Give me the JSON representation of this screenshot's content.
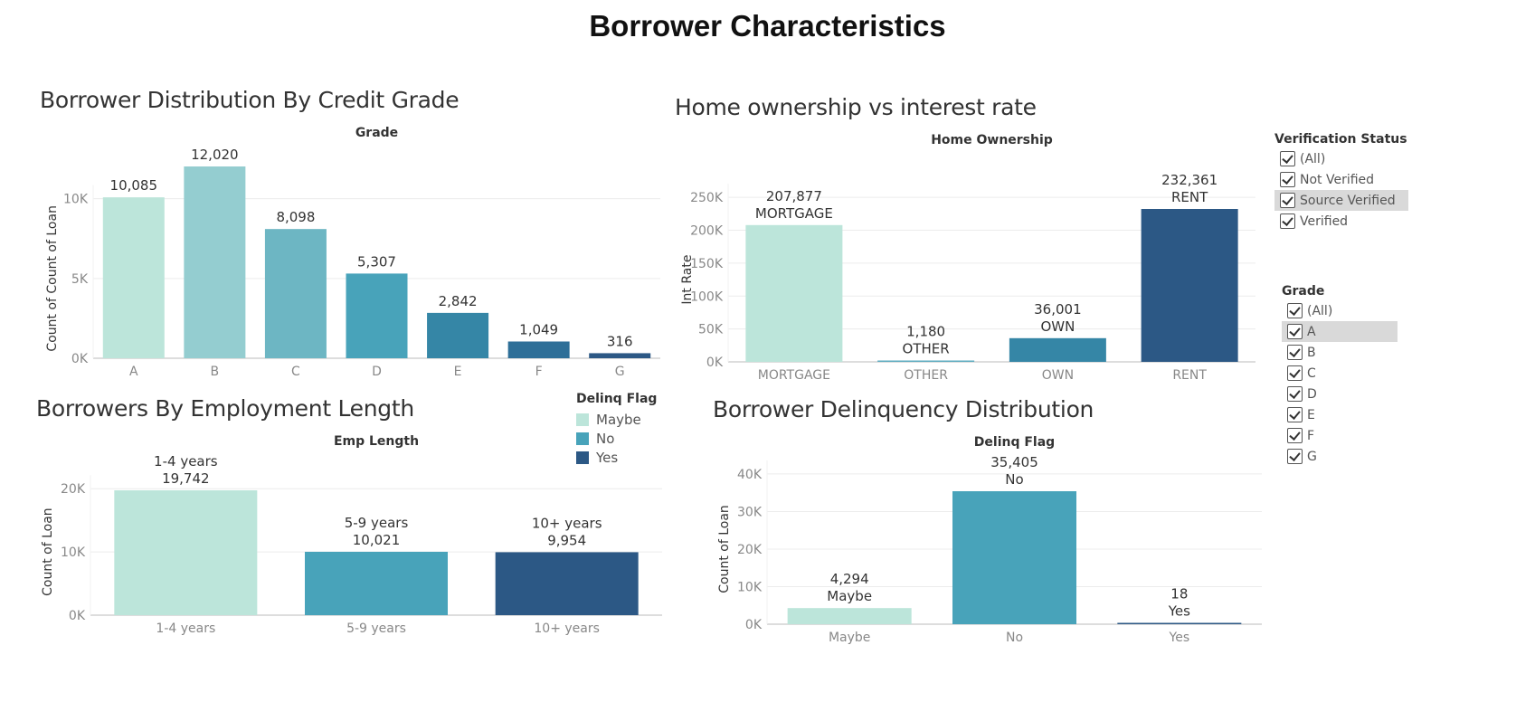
{
  "dashboard": {
    "title": "Borrower Characteristics"
  },
  "colors": {
    "grade": [
      "#bce5da",
      "#94cdd0",
      "#6db6c3",
      "#48a3ba",
      "#3586a6",
      "#2e6f98",
      "#2c5885"
    ],
    "home": [
      "#bce5da",
      "#5fadc1",
      "#3586a6",
      "#2c5885"
    ],
    "emp": [
      "#bce5da",
      "#48a3ba",
      "#2c5885"
    ],
    "delinq": [
      "#bce5da",
      "#48a3ba",
      "#2c5885"
    ]
  },
  "chart_data": [
    {
      "id": "grade",
      "type": "bar",
      "title": "Borrower Distribution By Credit Grade",
      "header": "Grade",
      "ylabel": "Count of Count of Loan",
      "categories": [
        "A",
        "B",
        "C",
        "D",
        "E",
        "F",
        "G"
      ],
      "values": [
        10085,
        12020,
        8098,
        5307,
        2842,
        1049,
        316
      ],
      "labels": [
        "10,085",
        "12,020",
        "8,098",
        "5,307",
        "2,842",
        "1,049",
        "316"
      ],
      "yticks": [
        0,
        5000,
        10000
      ],
      "ytick_labels": [
        "0K",
        "5K",
        "10K"
      ],
      "ylim": [
        0,
        13000
      ],
      "grid": true
    },
    {
      "id": "home",
      "type": "bar",
      "title": "Home ownership vs  interest rate",
      "header": "Home Ownership",
      "ylabel": "Int Rate",
      "categories": [
        "MORTGAGE",
        "OTHER",
        "OWN",
        "RENT"
      ],
      "values": [
        207877,
        1180,
        36001,
        232361
      ],
      "labels": [
        "207,877",
        "1,180",
        "36,001",
        "232,361"
      ],
      "yticks": [
        0,
        50000,
        100000,
        150000,
        200000,
        250000
      ],
      "ytick_labels": [
        "0K",
        "50K",
        "100K",
        "150K",
        "200K",
        "250K"
      ],
      "ylim": [
        0,
        260000
      ],
      "grid": true
    },
    {
      "id": "emp",
      "type": "bar",
      "title": "Borrowers By Employment Length",
      "header": "Emp Length",
      "ylabel": "Count of Loan",
      "categories": [
        "1-4 years",
        "5-9 years",
        "10+ years"
      ],
      "values": [
        19742,
        10021,
        9954
      ],
      "labels": [
        "19,742",
        "10,021",
        "9,954"
      ],
      "yticks": [
        0,
        10000,
        20000
      ],
      "ytick_labels": [
        "0K",
        "10K",
        "20K"
      ],
      "ylim": [
        0,
        22000
      ],
      "grid": true
    },
    {
      "id": "delinq",
      "type": "bar",
      "title": "Borrower Delinquency Distribution",
      "header": "Delinq Flag",
      "ylabel": "Count of Loan",
      "categories": [
        "Maybe",
        "No",
        "Yes"
      ],
      "values": [
        4294,
        35405,
        18
      ],
      "labels": [
        "4,294",
        "35,405",
        "18"
      ],
      "yticks": [
        0,
        10000,
        20000,
        30000,
        40000
      ],
      "ytick_labels": [
        "0K",
        "10K",
        "20K",
        "30K",
        "40K"
      ],
      "ylim": [
        0,
        42000
      ],
      "grid": true
    }
  ],
  "legend": {
    "title": "Delinq Flag",
    "items": [
      {
        "label": "Maybe",
        "color": "#bce5da"
      },
      {
        "label": "No",
        "color": "#48a3ba"
      },
      {
        "label": "Yes",
        "color": "#2c5885"
      }
    ]
  },
  "filters": {
    "verification": {
      "title": "Verification Status",
      "items": [
        "(All)",
        "Not Verified",
        "Source Verified",
        "Verified"
      ],
      "highlighted": "Source Verified"
    },
    "grade": {
      "title": "Grade",
      "items": [
        "(All)",
        "A",
        "B",
        "C",
        "D",
        "E",
        "F",
        "G"
      ],
      "highlighted": "A"
    }
  }
}
